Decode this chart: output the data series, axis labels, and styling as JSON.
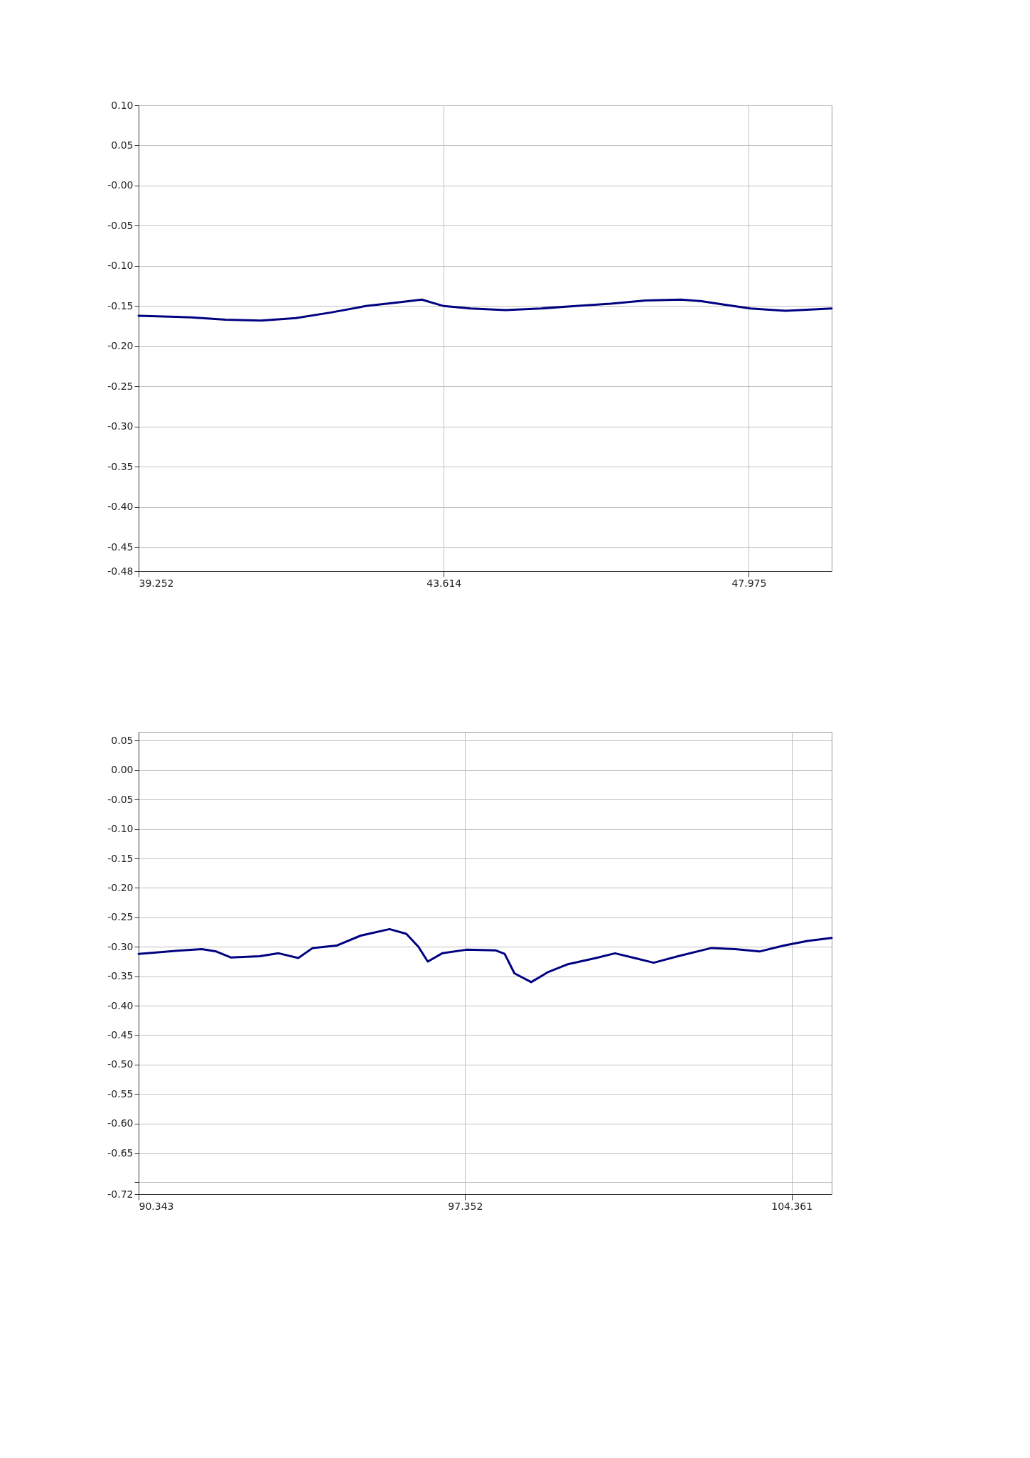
{
  "chart_data": [
    {
      "type": "line",
      "grid": true,
      "line_style": "solid",
      "marker": "none",
      "xlim": [
        39.252,
        49.16
      ],
      "xticks": [
        39.252,
        43.614,
        47.975
      ],
      "ylim": [
        -0.48,
        0.1
      ],
      "yticks": [
        {
          "value": 0.1,
          "label": "0.10"
        },
        0.05,
        {
          "value": 0,
          "label": "-0.00"
        },
        -0.05,
        {
          "value": -0.1,
          "label": "-0.10"
        },
        -0.15,
        {
          "value": -0.2,
          "label": "-0.20"
        },
        -0.25,
        {
          "value": -0.3,
          "label": "-0.30"
        },
        -0.35,
        {
          "value": -0.4,
          "label": "-0.40"
        },
        -0.45,
        -0.48
      ],
      "series": [
        {
          "color": "#000080",
          "x": [
            39.252,
            40.0,
            40.5,
            41.0,
            41.5,
            42.0,
            42.5,
            43.0,
            43.3,
            43.614,
            44.0,
            44.5,
            45.0,
            45.5,
            46.0,
            46.5,
            47.0,
            47.3,
            47.6,
            48.0,
            48.5,
            49.16
          ],
          "values": [
            -0.162,
            -0.164,
            -0.167,
            -0.168,
            -0.165,
            -0.158,
            -0.15,
            -0.145,
            -0.142,
            -0.15,
            -0.153,
            -0.155,
            -0.153,
            -0.15,
            -0.147,
            -0.143,
            -0.142,
            -0.144,
            -0.148,
            -0.153,
            -0.156,
            -0.153
          ]
        }
      ]
    },
    {
      "type": "line",
      "grid": true,
      "line_style": "solid",
      "marker": "none",
      "xlim": [
        90.343,
        105.22
      ],
      "xticks": [
        90.343,
        97.352,
        104.361
      ],
      "ylim": [
        -0.72,
        0.065
      ],
      "yticks": [
        0.05,
        {
          "value": 0,
          "label": "0.00"
        },
        -0.05,
        {
          "value": -0.1,
          "label": "-0.10"
        },
        -0.15,
        {
          "value": -0.2,
          "label": "-0.20"
        },
        -0.25,
        {
          "value": -0.3,
          "label": "-0.30"
        },
        -0.35,
        {
          "value": -0.4,
          "label": "-0.40"
        },
        -0.45,
        {
          "value": -0.5,
          "label": "-0.50"
        },
        -0.55,
        {
          "value": -0.6,
          "label": "-0.60"
        },
        -0.65,
        {
          "value": -0.7,
          "label": null
        },
        -0.72
      ],
      "series": [
        {
          "color": "#000080",
          "x": [
            90.343,
            91.29,
            91.7,
            92.01,
            92.32,
            92.94,
            93.35,
            93.77,
            94.08,
            94.59,
            95.11,
            95.73,
            96.09,
            96.35,
            96.55,
            96.86,
            97.38,
            98.0,
            98.2,
            98.41,
            98.77,
            99.13,
            99.54,
            100.16,
            100.57,
            100.99,
            101.4,
            101.92,
            102.64,
            103.15,
            103.67,
            104.19,
            104.7,
            105.22
          ],
          "values": [
            -0.312,
            -0.306,
            -0.304,
            -0.308,
            -0.318,
            -0.316,
            -0.311,
            -0.319,
            -0.302,
            -0.298,
            -0.281,
            -0.27,
            -0.278,
            -0.3,
            -0.325,
            -0.311,
            -0.305,
            -0.306,
            -0.312,
            -0.345,
            -0.36,
            -0.343,
            -0.33,
            -0.319,
            -0.311,
            -0.319,
            -0.327,
            -0.316,
            -0.302,
            -0.304,
            -0.308,
            -0.298,
            -0.29,
            -0.285
          ]
        }
      ]
    }
  ]
}
